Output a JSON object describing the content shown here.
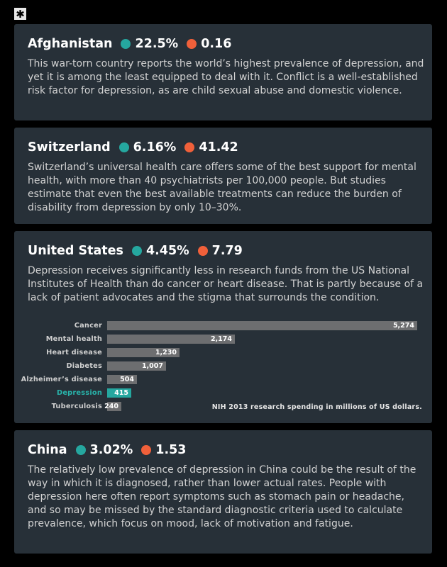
{
  "logo_glyph": "✱",
  "colors": {
    "prevalence": "#25a79f",
    "psychiatrists": "#f0603a"
  },
  "cards": [
    {
      "country": "Afghanistan",
      "prevalence": "22.5%",
      "psychiatrists": "0.16",
      "body": "This war-torn country reports the world’s highest prevalence of depression, and yet it is among the least equipped to deal with it. Conflict is a well-established risk factor for depression, as are child sexual abuse and domestic violence."
    },
    {
      "country": "Switzerland",
      "prevalence": "6.16%",
      "psychiatrists": "41.42",
      "body": "Switzerland’s universal health care offers some of the best support for mental health, with more than 40 psychiatrists per 100,000 people. But studies estimate that even the best available treatments can reduce the burden of disability from depression by only 10–30%."
    },
    {
      "country": "United States",
      "prevalence": "4.45%",
      "psychiatrists": "7.79",
      "body": "Depression receives significantly less in research funds from the US National Institutes of Health than do cancer or heart disease. That is partly because of a lack of patient advocates and the stigma that surrounds the condition."
    },
    {
      "country": "China",
      "prevalence": "3.02%",
      "psychiatrists": "1.53",
      "body": "The relatively low prevalence of depression in China could be the result of the way in which it is diagnosed, rather than lower actual rates. People with depression here often report symptoms such as stomach pain or headache, and so may be missed by the standard diagnostic criteria used to calculate prevalence, which focus on mood, lack of motivation and fatigue."
    }
  ],
  "chart_data": {
    "type": "bar",
    "orientation": "horizontal",
    "categories": [
      "Cancer",
      "Mental health",
      "Heart disease",
      "Diabetes",
      "Alzheimer’s disease",
      "Depression",
      "Tuberculosis"
    ],
    "values": [
      5274,
      2174,
      1230,
      1007,
      504,
      415,
      240
    ],
    "value_labels": [
      "5,274",
      "2,174",
      "1,230",
      "1,007",
      "504",
      "415",
      "240"
    ],
    "highlight": "Depression",
    "note": "NIH 2013 research spending in millions of US dollars.",
    "xlim": [
      0,
      5274
    ]
  }
}
